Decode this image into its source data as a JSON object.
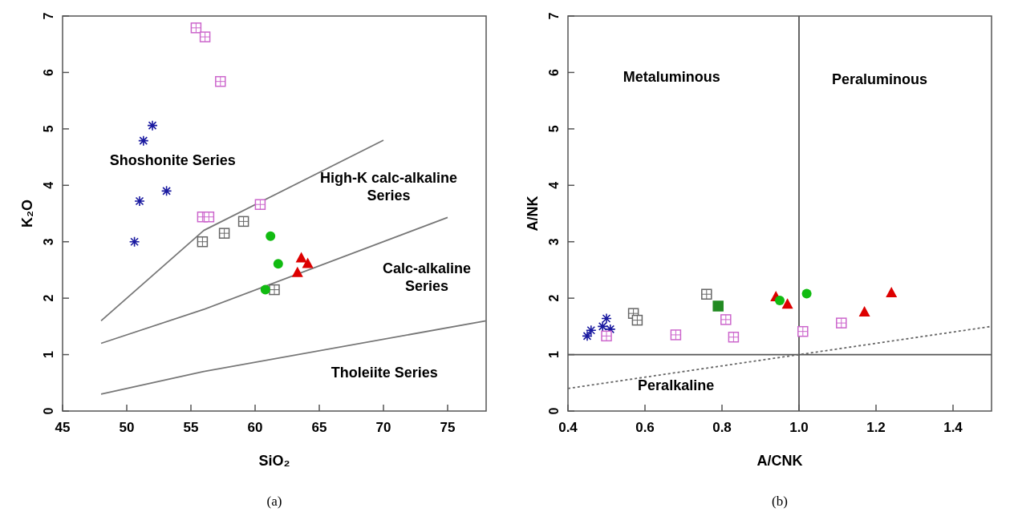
{
  "chart_data": [
    {
      "type": "scatter",
      "xlabel": "SiO₂",
      "ylabel": "K₂O",
      "xlim": [
        45,
        78
      ],
      "ylim": [
        0,
        7
      ],
      "xticks": [
        45,
        50,
        55,
        60,
        65,
        70,
        75
      ],
      "yticks": [
        0,
        1,
        2,
        3,
        4,
        5,
        6,
        7
      ],
      "grid": false,
      "series": [
        {
          "type": "line",
          "color": "#777777",
          "x": [
            48,
            56,
            70
          ],
          "values": [
            1.6,
            3.2,
            4.8
          ],
          "line_style": "solid",
          "marker": "none"
        },
        {
          "type": "line",
          "color": "#777777",
          "x": [
            48,
            56,
            75
          ],
          "values": [
            1.2,
            1.8,
            3.43
          ],
          "line_style": "solid",
          "marker": "none"
        },
        {
          "type": "line",
          "color": "#777777",
          "x": [
            48,
            56,
            78
          ],
          "values": [
            0.3,
            0.7,
            1.6
          ],
          "line_style": "solid",
          "marker": "none"
        },
        {
          "color": "#1a1aa0",
          "marker": "cross",
          "x": [
            52.0,
            51.3,
            53.1,
            51.0,
            50.6
          ],
          "values": [
            5.06,
            4.79,
            3.9,
            3.72,
            3.0
          ]
        },
        {
          "color": "#cc66cc",
          "marker": "square",
          "x": [
            55.4,
            56.1,
            57.3,
            55.9,
            56.4,
            60.4
          ],
          "values": [
            6.79,
            6.63,
            5.84,
            3.44,
            3.44,
            3.66
          ]
        },
        {
          "color": "#666666",
          "marker": "square",
          "x": [
            55.9,
            57.6,
            59.1,
            61.5
          ],
          "values": [
            3.0,
            3.15,
            3.36,
            2.15
          ]
        },
        {
          "color": "#11bb11",
          "marker": "circle",
          "x": [
            61.2,
            61.8,
            60.8
          ],
          "values": [
            3.1,
            2.61,
            2.15
          ]
        },
        {
          "color": "#dd0000",
          "marker": "triangle",
          "x": [
            63.6,
            64.1,
            63.3
          ],
          "values": [
            2.72,
            2.62,
            2.46
          ]
        }
      ],
      "annotations": [
        "Shoshonite Series",
        "High-K calc-alkaline\nSeries",
        "Calc-alkaline\nSeries",
        "Tholeiite Series",
        "(a)"
      ]
    },
    {
      "type": "scatter",
      "xlabel": "A/CNK",
      "ylabel": "A/NK",
      "xlim": [
        0.4,
        1.5
      ],
      "ylim": [
        0,
        7
      ],
      "xticks": [
        {
          "value": 0.4,
          "label": "0.4"
        },
        {
          "value": 0.6,
          "label": "0.6"
        },
        {
          "value": 0.8,
          "label": "0.8"
        },
        {
          "value": 1.0,
          "label": "1.0"
        },
        {
          "value": 1.2,
          "label": "1.2"
        },
        {
          "value": 1.4,
          "label": "1.4"
        }
      ],
      "yticks": [
        0,
        1,
        2,
        3,
        4,
        5,
        6,
        7
      ],
      "grid": false,
      "series": [
        {
          "type": "line",
          "color": "#555555",
          "x": [
            1.0,
            1.0
          ],
          "values": [
            0,
            7
          ],
          "line_style": "solid",
          "marker": "none"
        },
        {
          "type": "line",
          "color": "#555555",
          "x": [
            0.4,
            1.5
          ],
          "values": [
            1.0,
            1.0
          ],
          "line_style": "solid",
          "marker": "none"
        },
        {
          "type": "line",
          "color": "#666666",
          "x": [
            0.4,
            1.5
          ],
          "values": [
            0.4,
            1.5
          ],
          "line_style": "dotted",
          "marker": "none"
        },
        {
          "color": "#1a1aa0",
          "marker": "cross",
          "x": [
            0.45,
            0.46,
            0.49,
            0.5,
            0.51
          ],
          "values": [
            1.33,
            1.43,
            1.5,
            1.64,
            1.45
          ]
        },
        {
          "color": "#cc66cc",
          "marker": "square",
          "x": [
            0.5,
            0.68,
            0.81,
            0.83,
            1.01,
            1.11
          ],
          "values": [
            1.33,
            1.35,
            1.62,
            1.31,
            1.41,
            1.56
          ]
        },
        {
          "color": "#666666",
          "marker": "square",
          "x": [
            0.57,
            0.58,
            0.76
          ],
          "values": [
            1.73,
            1.61,
            2.07
          ]
        },
        {
          "color": "#228b22",
          "marker": "square",
          "x": [
            0.79
          ],
          "values": [
            1.86
          ]
        },
        {
          "color": "#dd0000",
          "marker": "triangle",
          "x": [
            0.94,
            0.97,
            1.17,
            1.24
          ],
          "values": [
            2.03,
            1.9,
            1.76,
            2.1
          ]
        },
        {
          "color": "#11bb11",
          "marker": "circle",
          "x": [
            0.95,
            1.02
          ],
          "values": [
            1.96,
            2.08
          ]
        }
      ],
      "annotations": [
        "Metaluminous",
        "Peraluminous",
        "Peralkaline",
        "(b)"
      ]
    }
  ]
}
